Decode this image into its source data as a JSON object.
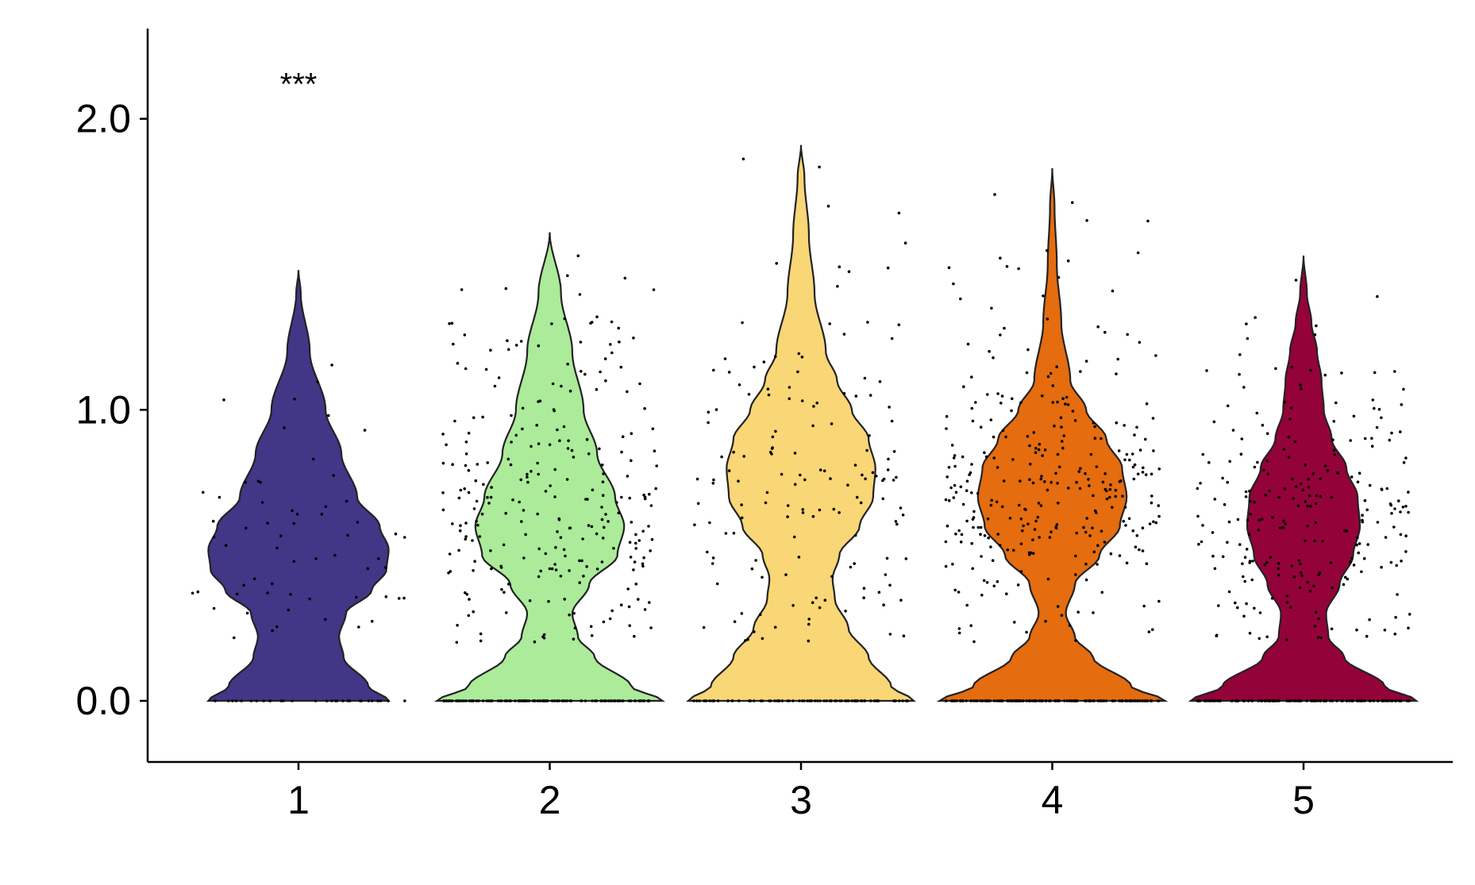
{
  "chart_data": {
    "type": "violin",
    "title": "",
    "xlabel": "",
    "ylabel": "",
    "categories": [
      "1",
      "2",
      "3",
      "4",
      "5"
    ],
    "ylim": [
      -0.21,
      2.31
    ],
    "y_ticks": [
      "0.0",
      "1.0",
      "2.0"
    ],
    "y_tick_values": [
      0.0,
      1.0,
      2.0
    ],
    "grid": false,
    "legend": "none",
    "annotations": [
      {
        "text": "***",
        "category": "1",
        "y": 2.12
      }
    ],
    "jitter_points": true,
    "groups": [
      {
        "category": "1",
        "color": "#423687",
        "max": 1.48,
        "n_cells": 90,
        "n_zero": 30,
        "profile": [
          [
            0.0,
            0.8
          ],
          [
            0.05,
            0.62
          ],
          [
            0.15,
            0.4
          ],
          [
            0.22,
            0.36
          ],
          [
            0.3,
            0.42
          ],
          [
            0.38,
            0.65
          ],
          [
            0.45,
            0.78
          ],
          [
            0.52,
            0.8
          ],
          [
            0.6,
            0.72
          ],
          [
            0.7,
            0.52
          ],
          [
            0.85,
            0.38
          ],
          [
            1.0,
            0.24
          ],
          [
            1.2,
            0.1
          ],
          [
            1.4,
            0.02
          ],
          [
            1.48,
            0.0
          ]
        ]
      },
      {
        "category": "2",
        "color": "#ABEB9A",
        "max": 1.61,
        "n_cells": 380,
        "n_zero": 120,
        "profile": [
          [
            0.0,
            1.0
          ],
          [
            0.05,
            0.72
          ],
          [
            0.15,
            0.4
          ],
          [
            0.22,
            0.25
          ],
          [
            0.3,
            0.2
          ],
          [
            0.4,
            0.35
          ],
          [
            0.5,
            0.6
          ],
          [
            0.6,
            0.66
          ],
          [
            0.7,
            0.58
          ],
          [
            0.85,
            0.42
          ],
          [
            1.0,
            0.3
          ],
          [
            1.2,
            0.2
          ],
          [
            1.4,
            0.1
          ],
          [
            1.61,
            0.0
          ]
        ]
      },
      {
        "category": "3",
        "color": "#F9D676",
        "max": 1.91,
        "n_cells": 230,
        "n_zero": 80,
        "profile": [
          [
            0.0,
            1.0
          ],
          [
            0.05,
            0.8
          ],
          [
            0.15,
            0.6
          ],
          [
            0.25,
            0.42
          ],
          [
            0.35,
            0.3
          ],
          [
            0.42,
            0.28
          ],
          [
            0.5,
            0.34
          ],
          [
            0.6,
            0.52
          ],
          [
            0.7,
            0.64
          ],
          [
            0.8,
            0.66
          ],
          [
            0.9,
            0.6
          ],
          [
            1.0,
            0.45
          ],
          [
            1.1,
            0.32
          ],
          [
            1.2,
            0.22
          ],
          [
            1.4,
            0.12
          ],
          [
            1.6,
            0.07
          ],
          [
            1.8,
            0.03
          ],
          [
            1.91,
            0.0
          ]
        ]
      },
      {
        "category": "4",
        "color": "#E56C0F",
        "max": 1.83,
        "n_cells": 450,
        "n_zero": 150,
        "profile": [
          [
            0.0,
            1.0
          ],
          [
            0.05,
            0.7
          ],
          [
            0.15,
            0.36
          ],
          [
            0.22,
            0.2
          ],
          [
            0.3,
            0.12
          ],
          [
            0.4,
            0.2
          ],
          [
            0.5,
            0.42
          ],
          [
            0.6,
            0.6
          ],
          [
            0.7,
            0.66
          ],
          [
            0.8,
            0.62
          ],
          [
            0.9,
            0.48
          ],
          [
            1.0,
            0.3
          ],
          [
            1.1,
            0.16
          ],
          [
            1.3,
            0.08
          ],
          [
            1.5,
            0.04
          ],
          [
            1.7,
            0.02
          ],
          [
            1.83,
            0.0
          ]
        ]
      },
      {
        "category": "5",
        "color": "#94023A",
        "max": 1.53,
        "n_cells": 360,
        "n_zero": 120,
        "profile": [
          [
            0.0,
            1.0
          ],
          [
            0.05,
            0.72
          ],
          [
            0.15,
            0.36
          ],
          [
            0.22,
            0.22
          ],
          [
            0.3,
            0.2
          ],
          [
            0.4,
            0.32
          ],
          [
            0.5,
            0.44
          ],
          [
            0.6,
            0.5
          ],
          [
            0.7,
            0.48
          ],
          [
            0.8,
            0.38
          ],
          [
            0.9,
            0.25
          ],
          [
            1.0,
            0.18
          ],
          [
            1.1,
            0.16
          ],
          [
            1.2,
            0.12
          ],
          [
            1.3,
            0.07
          ],
          [
            1.4,
            0.03
          ],
          [
            1.53,
            0.0
          ]
        ]
      }
    ]
  }
}
